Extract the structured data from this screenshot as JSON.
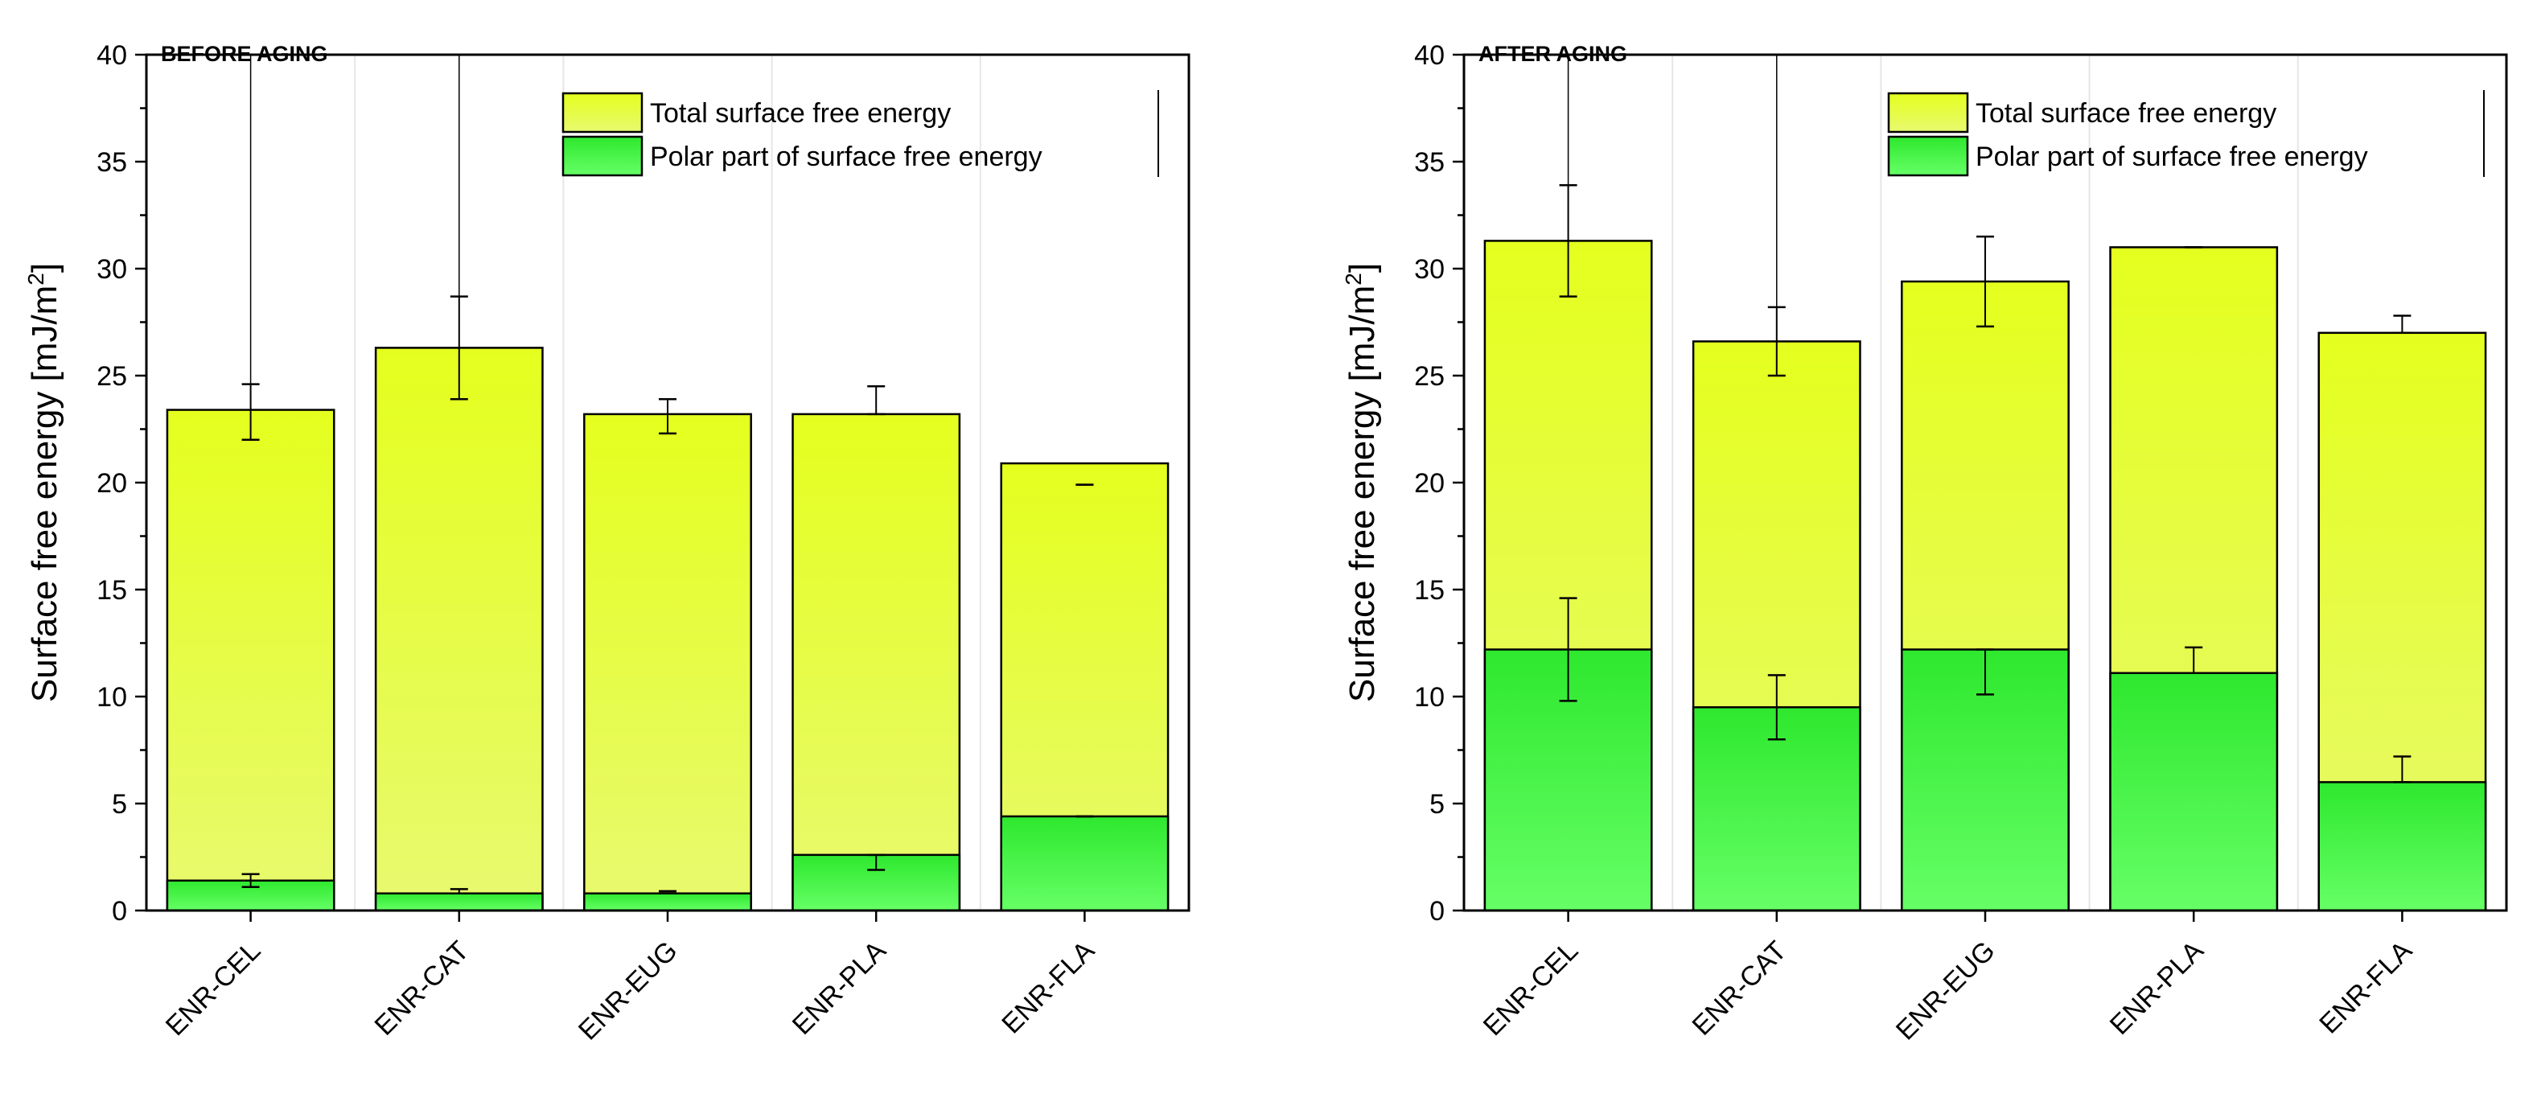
{
  "chart_data": [
    {
      "type": "bar",
      "title": "BEFORE AGING",
      "xlabel": "",
      "ylabel": "Surface free energy [mJ/m",
      "ylabel_sup": "2",
      "ylabel_end": "]",
      "ylim": [
        0,
        40
      ],
      "yticks": [
        "0",
        "5",
        "10",
        "15",
        "20",
        "25",
        "30",
        "35",
        "40"
      ],
      "categories": [
        "ENR-CEL",
        "ENR-CAT",
        "ENR-EUG",
        "ENR-PLA",
        "ENR-FLA"
      ],
      "series": [
        {
          "name": "Total surface free energy",
          "values": [
            23.4,
            26.3,
            23.2,
            23.2,
            20.9
          ],
          "err_low": [
            22.0,
            23.9,
            22.3,
            23.2,
            19.9
          ],
          "err_high": [
            24.6,
            28.7,
            23.9,
            24.5,
            19.9
          ]
        },
        {
          "name": "Polar part of surface free energy",
          "values": [
            1.4,
            0.8,
            0.8,
            2.6,
            4.4
          ],
          "err_low": [
            1.1,
            0.8,
            0.9,
            1.9,
            4.4
          ],
          "err_high": [
            1.7,
            1.0,
            0.9,
            2.6,
            4.4
          ]
        }
      ],
      "legend": "top-right",
      "grid": "vertical separators"
    },
    {
      "type": "bar",
      "title": "AFTER AGING",
      "xlabel": "",
      "ylabel": "Surface free energy [mJ/m",
      "ylabel_sup": "2",
      "ylabel_end": "]",
      "ylim": [
        0,
        40
      ],
      "yticks": [
        "0",
        "5",
        "10",
        "15",
        "20",
        "25",
        "30",
        "35",
        "40"
      ],
      "categories": [
        "ENR-CEL",
        "ENR-CAT",
        "ENR-EUG",
        "ENR-PLA",
        "ENR-FLA"
      ],
      "series": [
        {
          "name": "Total surface free energy",
          "values": [
            31.3,
            26.6,
            29.4,
            31.0,
            27.0
          ],
          "err_low": [
            28.7,
            25.0,
            27.3,
            31.0,
            27.0
          ],
          "err_high": [
            33.9,
            28.2,
            31.5,
            31.0,
            27.8
          ]
        },
        {
          "name": "Polar part of surface free energy",
          "values": [
            12.2,
            9.5,
            12.2,
            11.1,
            6.0
          ],
          "err_low": [
            9.8,
            8.0,
            10.1,
            11.1,
            6.0
          ],
          "err_high": [
            14.6,
            11.0,
            12.2,
            12.3,
            7.2
          ]
        }
      ],
      "legend": "top-right",
      "grid": "vertical separators"
    }
  ]
}
